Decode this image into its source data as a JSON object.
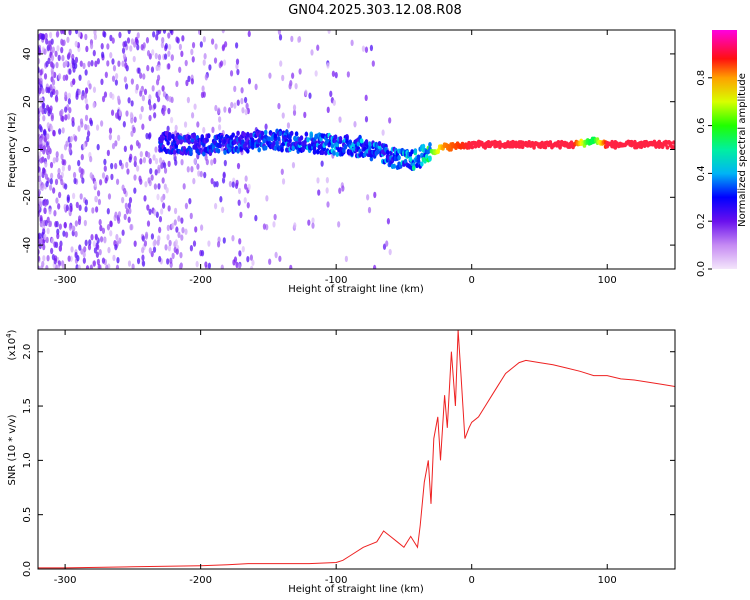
{
  "title": "GN04.2025.303.12.08.R08",
  "chart_data": [
    {
      "type": "heatmap",
      "name": "spectrogram",
      "xlabel": "Height of straight line (km)",
      "ylabel": "Frequency (Hz)",
      "xlim": [
        -320,
        150
      ],
      "ylim": [
        -50,
        50
      ],
      "xticks": [
        -300,
        -200,
        -100,
        0,
        100
      ],
      "yticks": [
        -40,
        -20,
        0,
        20,
        40
      ],
      "colorbar": {
        "label": "Normalized spectral amplitude",
        "range": [
          0,
          1
        ],
        "ticks": [
          0.0,
          0.2,
          0.4,
          0.6,
          0.8
        ],
        "tick_labels": [
          "0.0",
          "0.2",
          "0.4",
          "0.6",
          "0.8"
        ],
        "colormap": [
          "#f4e6fb",
          "#7a1cf0",
          "#0000ff",
          "#00e0f0",
          "#00ff40",
          "#ffff00",
          "#ff3000",
          "#ff00e0"
        ]
      },
      "ridge": {
        "x": [
          -230,
          -200,
          -170,
          -150,
          -120,
          -100,
          -80,
          -60,
          -45,
          -30,
          -20,
          0,
          50,
          75,
          85,
          90,
          100,
          150
        ],
        "freq": [
          3,
          2,
          3,
          4,
          3,
          2,
          1,
          -3,
          -5,
          -1,
          1,
          2,
          2,
          2,
          3,
          4,
          2,
          2
        ],
        "amplitude": [
          0.3,
          0.32,
          0.33,
          0.35,
          0.4,
          0.4,
          0.4,
          0.38,
          0.45,
          0.6,
          0.8,
          0.9,
          0.9,
          0.9,
          0.6,
          0.55,
          0.9,
          0.9
        ]
      }
    },
    {
      "type": "line",
      "name": "snr",
      "xlabel": "Height of straight line (km)",
      "ylabel": "SNR (10 * v/v)",
      "yscale_label": "(x10",
      "yscale_exponent": "4",
      "xlim": [
        -320,
        150
      ],
      "ylim": [
        0,
        2.2
      ],
      "xticks": [
        -300,
        -200,
        -100,
        0,
        100
      ],
      "yticks": [
        0.0,
        0.5,
        1.0,
        1.5,
        2.0
      ],
      "ytick_labels": [
        "0.0",
        "0.5",
        "1.0",
        "1.5",
        "2.0"
      ],
      "series": [
        {
          "name": "SNR",
          "color": "#ee2222",
          "x": [
            -320,
            -300,
            -250,
            -200,
            -180,
            -165,
            -150,
            -120,
            -100,
            -95,
            -90,
            -80,
            -70,
            -65,
            -60,
            -55,
            -50,
            -45,
            -40,
            -38,
            -35,
            -32,
            -30,
            -28,
            -25,
            -23,
            -20,
            -18,
            -15,
            -12,
            -10,
            -8,
            -5,
            -2,
            0,
            5,
            10,
            15,
            20,
            25,
            30,
            35,
            40,
            50,
            60,
            70,
            80,
            90,
            100,
            110,
            120,
            130,
            140,
            150
          ],
          "y": [
            0.01,
            0.01,
            0.02,
            0.03,
            0.04,
            0.05,
            0.05,
            0.05,
            0.06,
            0.08,
            0.12,
            0.2,
            0.25,
            0.35,
            0.3,
            0.25,
            0.2,
            0.3,
            0.2,
            0.4,
            0.8,
            1.0,
            0.6,
            1.2,
            1.4,
            1.0,
            1.6,
            1.3,
            2.0,
            1.5,
            2.2,
            1.8,
            1.2,
            1.3,
            1.35,
            1.4,
            1.5,
            1.6,
            1.7,
            1.8,
            1.85,
            1.9,
            1.92,
            1.9,
            1.88,
            1.85,
            1.82,
            1.78,
            1.78,
            1.75,
            1.74,
            1.72,
            1.7,
            1.68
          ]
        }
      ]
    }
  ]
}
